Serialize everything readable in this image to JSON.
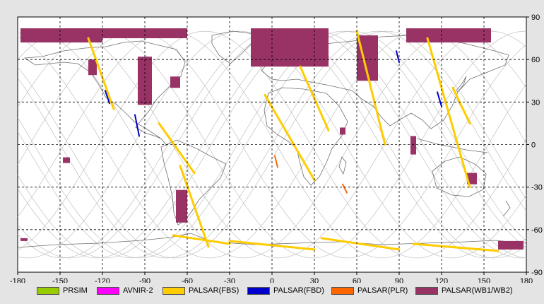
{
  "map": {
    "lon_range": [
      -180,
      180
    ],
    "lat_range": [
      -90,
      90
    ],
    "lon_ticks": [
      -180,
      -150,
      -120,
      -90,
      -60,
      -30,
      0,
      30,
      60,
      90,
      120,
      150,
      180
    ],
    "lat_ticks": [
      90,
      60,
      30,
      0,
      -30,
      -60,
      -90
    ],
    "lon_tick_labels": [
      "-180",
      "-150",
      "-120",
      "-90",
      "-60",
      "-30",
      "0",
      "30",
      "60",
      "90",
      "120",
      "150",
      "180"
    ],
    "lat_tick_labels": [
      "90",
      "60",
      "30",
      "0",
      "-30",
      "-60",
      "-90"
    ],
    "grid": "dashed",
    "background_color": "#ffffff",
    "orbit_track_color": "#c0c0c0",
    "coastline_color": "#707070"
  },
  "legend": [
    {
      "label": "PRSIM",
      "color": "#99cc00"
    },
    {
      "label": "AVNIR-2",
      "color": "#ff00ff"
    },
    {
      "label": "PALSAR(FBS)",
      "color": "#ffcc00"
    },
    {
      "label": "PALSAR(FBD)",
      "color": "#0000cc"
    },
    {
      "label": "PALSAR(PLR)",
      "color": "#ff6600"
    },
    {
      "label": "PALSAR(WB1/WB2)",
      "color": "#993366"
    }
  ],
  "observations": {
    "wb": [
      {
        "lon": [
          -178,
          -120
        ],
        "lat": [
          72,
          82
        ]
      },
      {
        "lon": [
          -145,
          -60
        ],
        "lat": [
          75,
          82
        ]
      },
      {
        "lon": [
          -130,
          -124
        ],
        "lat": [
          49,
          60
        ]
      },
      {
        "lon": [
          -95,
          -85
        ],
        "lat": [
          28,
          62
        ]
      },
      {
        "lon": [
          -72,
          -65
        ],
        "lat": [
          40,
          48
        ]
      },
      {
        "lon": [
          -15,
          40
        ],
        "lat": [
          55,
          82
        ]
      },
      {
        "lon": [
          60,
          75
        ],
        "lat": [
          45,
          77
        ]
      },
      {
        "lon": [
          95,
          155
        ],
        "lat": [
          72,
          82
        ]
      },
      {
        "lon": [
          48,
          52
        ],
        "lat": [
          7,
          12
        ]
      },
      {
        "lon": [
          98,
          102
        ],
        "lat": [
          -7,
          6
        ]
      },
      {
        "lon": [
          -148,
          -143
        ],
        "lat": [
          -13,
          -9
        ]
      },
      {
        "lon": [
          -68,
          -60
        ],
        "lat": [
          -55,
          -32
        ]
      },
      {
        "lon": [
          138,
          145
        ],
        "lat": [
          -28,
          -20
        ]
      },
      {
        "lon": [
          160,
          178
        ],
        "lat": [
          -74,
          -68
        ]
      },
      {
        "lon": [
          -178,
          -173
        ],
        "lat": [
          -68,
          -66
        ]
      }
    ],
    "fbs": [
      {
        "lon": [
          -130,
          -112
        ],
        "lat": [
          75,
          25
        ]
      },
      {
        "lon": [
          -80,
          -55
        ],
        "lat": [
          15,
          -20
        ]
      },
      {
        "lon": [
          -65,
          -45
        ],
        "lat": [
          -15,
          -72
        ]
      },
      {
        "lon": [
          -5,
          30
        ],
        "lat": [
          35,
          -25
        ]
      },
      {
        "lon": [
          20,
          40
        ],
        "lat": [
          55,
          10
        ]
      },
      {
        "lon": [
          60,
          80
        ],
        "lat": [
          80,
          0
        ]
      },
      {
        "lon": [
          110,
          140
        ],
        "lat": [
          75,
          -30
        ]
      },
      {
        "lon": [
          128,
          140
        ],
        "lat": [
          40,
          15
        ]
      },
      {
        "lon": [
          -70,
          -30
        ],
        "lat": [
          -64,
          -70
        ]
      },
      {
        "lon": [
          -30,
          30
        ],
        "lat": [
          -68,
          -74
        ]
      },
      {
        "lon": [
          35,
          90
        ],
        "lat": [
          -66,
          -74
        ]
      },
      {
        "lon": [
          100,
          160
        ],
        "lat": [
          -70,
          -75
        ]
      }
    ],
    "fbd": [
      {
        "lon": [
          -118,
          -115
        ],
        "lat": [
          38,
          29
        ]
      },
      {
        "lon": [
          -97,
          -94
        ],
        "lat": [
          21,
          6
        ]
      },
      {
        "lon": [
          88,
          90
        ],
        "lat": [
          66,
          58
        ]
      },
      {
        "lon": [
          117,
          120
        ],
        "lat": [
          37,
          27
        ]
      }
    ],
    "plr": [
      {
        "lon": [
          2,
          4
        ],
        "lat": [
          -8,
          -16
        ]
      },
      {
        "lon": [
          50,
          53
        ],
        "lat": [
          -28,
          -34
        ]
      }
    ]
  }
}
